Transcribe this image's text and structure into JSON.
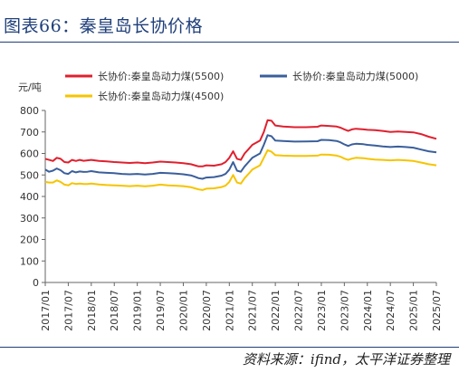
{
  "figure": {
    "title": "图表66：秦皇岛长协价格",
    "source": "资料来源：ifind，太平洋证券整理"
  },
  "chart_data": {
    "type": "line",
    "ylabel": "元/吨",
    "ylim": [
      0,
      800
    ],
    "yticks": [
      0,
      100,
      200,
      300,
      400,
      500,
      600,
      700,
      800
    ],
    "xlim": [
      "2017-01",
      "2025-07"
    ],
    "xticks": [
      "2017/01",
      "2017/07",
      "2018/01",
      "2018/07",
      "2019/01",
      "2019/07",
      "2020/01",
      "2020/07",
      "2021/01",
      "2021/07",
      "2022/01",
      "2022/07",
      "2023/01",
      "2023/07",
      "2024/01",
      "2024/07",
      "2025/01",
      "2025/07"
    ],
    "grid": false,
    "legend_position": "top",
    "series": [
      {
        "name": "长协价:秦皇岛动力煤(5500)",
        "color": "#e0202f",
        "points": [
          [
            "2017-01",
            575
          ],
          [
            "2017-02",
            570
          ],
          [
            "2017-03",
            565
          ],
          [
            "2017-04",
            580
          ],
          [
            "2017-05",
            575
          ],
          [
            "2017-06",
            560
          ],
          [
            "2017-07",
            558
          ],
          [
            "2017-08",
            570
          ],
          [
            "2017-09",
            565
          ],
          [
            "2017-10",
            570
          ],
          [
            "2017-11",
            566
          ],
          [
            "2017-12",
            568
          ],
          [
            "2018-01",
            570
          ],
          [
            "2018-03",
            565
          ],
          [
            "2018-05",
            563
          ],
          [
            "2018-07",
            560
          ],
          [
            "2018-09",
            558
          ],
          [
            "2018-11",
            556
          ],
          [
            "2019-01",
            558
          ],
          [
            "2019-03",
            555
          ],
          [
            "2019-05",
            558
          ],
          [
            "2019-07",
            562
          ],
          [
            "2019-09",
            560
          ],
          [
            "2019-11",
            558
          ],
          [
            "2020-01",
            555
          ],
          [
            "2020-03",
            550
          ],
          [
            "2020-04",
            545
          ],
          [
            "2020-05",
            540
          ],
          [
            "2020-06",
            540
          ],
          [
            "2020-07",
            545
          ],
          [
            "2020-09",
            543
          ],
          [
            "2020-11",
            550
          ],
          [
            "2020-12",
            560
          ],
          [
            "2021-01",
            580
          ],
          [
            "2021-02",
            610
          ],
          [
            "2021-03",
            575
          ],
          [
            "2021-04",
            570
          ],
          [
            "2021-05",
            600
          ],
          [
            "2021-06",
            620
          ],
          [
            "2021-07",
            640
          ],
          [
            "2021-09",
            660
          ],
          [
            "2021-10",
            700
          ],
          [
            "2021-11",
            755
          ],
          [
            "2021-12",
            752
          ],
          [
            "2022-01",
            730
          ],
          [
            "2022-03",
            725
          ],
          [
            "2022-06",
            722
          ],
          [
            "2022-09",
            722
          ],
          [
            "2022-12",
            724
          ],
          [
            "2023-01",
            730
          ],
          [
            "2023-03",
            728
          ],
          [
            "2023-05",
            725
          ],
          [
            "2023-06",
            720
          ],
          [
            "2023-07",
            712
          ],
          [
            "2023-08",
            705
          ],
          [
            "2023-09",
            712
          ],
          [
            "2023-10",
            715
          ],
          [
            "2023-12",
            712
          ],
          [
            "2024-01",
            710
          ],
          [
            "2024-03",
            708
          ],
          [
            "2024-05",
            705
          ],
          [
            "2024-07",
            700
          ],
          [
            "2024-09",
            702
          ],
          [
            "2024-11",
            700
          ],
          [
            "2025-01",
            698
          ],
          [
            "2025-03",
            690
          ],
          [
            "2025-05",
            678
          ],
          [
            "2025-07",
            668
          ]
        ]
      },
      {
        "name": "长协价:秦皇岛动力煤(5000)",
        "color": "#3a5f9b",
        "points": [
          [
            "2017-01",
            525
          ],
          [
            "2017-02",
            515
          ],
          [
            "2017-03",
            520
          ],
          [
            "2017-04",
            530
          ],
          [
            "2017-05",
            522
          ],
          [
            "2017-06",
            508
          ],
          [
            "2017-07",
            505
          ],
          [
            "2017-08",
            518
          ],
          [
            "2017-09",
            512
          ],
          [
            "2017-10",
            516
          ],
          [
            "2017-11",
            514
          ],
          [
            "2017-12",
            515
          ],
          [
            "2018-01",
            518
          ],
          [
            "2018-03",
            512
          ],
          [
            "2018-05",
            510
          ],
          [
            "2018-07",
            508
          ],
          [
            "2018-09",
            505
          ],
          [
            "2018-11",
            503
          ],
          [
            "2019-01",
            505
          ],
          [
            "2019-03",
            502
          ],
          [
            "2019-05",
            505
          ],
          [
            "2019-07",
            510
          ],
          [
            "2019-09",
            508
          ],
          [
            "2019-11",
            506
          ],
          [
            "2020-01",
            503
          ],
          [
            "2020-03",
            498
          ],
          [
            "2020-04",
            492
          ],
          [
            "2020-05",
            485
          ],
          [
            "2020-06",
            482
          ],
          [
            "2020-07",
            488
          ],
          [
            "2020-09",
            490
          ],
          [
            "2020-11",
            497
          ],
          [
            "2020-12",
            505
          ],
          [
            "2021-01",
            525
          ],
          [
            "2021-02",
            560
          ],
          [
            "2021-03",
            520
          ],
          [
            "2021-04",
            515
          ],
          [
            "2021-05",
            540
          ],
          [
            "2021-06",
            560
          ],
          [
            "2021-07",
            580
          ],
          [
            "2021-09",
            600
          ],
          [
            "2021-10",
            640
          ],
          [
            "2021-11",
            685
          ],
          [
            "2021-12",
            680
          ],
          [
            "2022-01",
            660
          ],
          [
            "2022-03",
            658
          ],
          [
            "2022-06",
            655
          ],
          [
            "2022-09",
            656
          ],
          [
            "2022-12",
            657
          ],
          [
            "2023-01",
            663
          ],
          [
            "2023-03",
            662
          ],
          [
            "2023-05",
            658
          ],
          [
            "2023-06",
            652
          ],
          [
            "2023-07",
            642
          ],
          [
            "2023-08",
            635
          ],
          [
            "2023-09",
            642
          ],
          [
            "2023-10",
            645
          ],
          [
            "2023-12",
            643
          ],
          [
            "2024-01",
            640
          ],
          [
            "2024-03",
            637
          ],
          [
            "2024-05",
            633
          ],
          [
            "2024-07",
            630
          ],
          [
            "2024-09",
            632
          ],
          [
            "2024-11",
            630
          ],
          [
            "2025-01",
            627
          ],
          [
            "2025-03",
            618
          ],
          [
            "2025-05",
            610
          ],
          [
            "2025-07",
            605
          ]
        ]
      },
      {
        "name": "长协价:秦皇岛动力煤(4500)",
        "color": "#f6c400",
        "points": [
          [
            "2017-01",
            468
          ],
          [
            "2017-02",
            465
          ],
          [
            "2017-03",
            465
          ],
          [
            "2017-04",
            475
          ],
          [
            "2017-05",
            468
          ],
          [
            "2017-06",
            455
          ],
          [
            "2017-07",
            452
          ],
          [
            "2017-08",
            462
          ],
          [
            "2017-09",
            458
          ],
          [
            "2017-10",
            460
          ],
          [
            "2017-11",
            458
          ],
          [
            "2017-12",
            458
          ],
          [
            "2018-01",
            460
          ],
          [
            "2018-03",
            456
          ],
          [
            "2018-05",
            453
          ],
          [
            "2018-07",
            452
          ],
          [
            "2018-09",
            450
          ],
          [
            "2018-11",
            448
          ],
          [
            "2019-01",
            450
          ],
          [
            "2019-03",
            447
          ],
          [
            "2019-05",
            450
          ],
          [
            "2019-07",
            455
          ],
          [
            "2019-09",
            452
          ],
          [
            "2019-11",
            450
          ],
          [
            "2020-01",
            448
          ],
          [
            "2020-03",
            443
          ],
          [
            "2020-04",
            438
          ],
          [
            "2020-05",
            433
          ],
          [
            "2020-06",
            430
          ],
          [
            "2020-07",
            436
          ],
          [
            "2020-09",
            438
          ],
          [
            "2020-11",
            444
          ],
          [
            "2020-12",
            450
          ],
          [
            "2021-01",
            468
          ],
          [
            "2021-02",
            500
          ],
          [
            "2021-03",
            465
          ],
          [
            "2021-04",
            460
          ],
          [
            "2021-05",
            485
          ],
          [
            "2021-06",
            505
          ],
          [
            "2021-07",
            525
          ],
          [
            "2021-09",
            545
          ],
          [
            "2021-10",
            580
          ],
          [
            "2021-11",
            615
          ],
          [
            "2021-12",
            608
          ],
          [
            "2022-01",
            592
          ],
          [
            "2022-03",
            590
          ],
          [
            "2022-06",
            588
          ],
          [
            "2022-09",
            588
          ],
          [
            "2022-12",
            590
          ],
          [
            "2023-01",
            595
          ],
          [
            "2023-03",
            594
          ],
          [
            "2023-05",
            590
          ],
          [
            "2023-06",
            585
          ],
          [
            "2023-07",
            576
          ],
          [
            "2023-08",
            570
          ],
          [
            "2023-09",
            576
          ],
          [
            "2023-10",
            580
          ],
          [
            "2023-12",
            578
          ],
          [
            "2024-01",
            575
          ],
          [
            "2024-03",
            572
          ],
          [
            "2024-05",
            570
          ],
          [
            "2024-07",
            568
          ],
          [
            "2024-09",
            570
          ],
          [
            "2024-11",
            568
          ],
          [
            "2025-01",
            565
          ],
          [
            "2025-03",
            558
          ],
          [
            "2025-05",
            550
          ],
          [
            "2025-07",
            545
          ]
        ]
      }
    ]
  }
}
